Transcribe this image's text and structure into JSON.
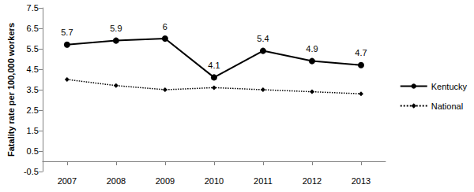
{
  "chart_data": {
    "type": "line",
    "y_label": "Fatality rate per 100,000 workers",
    "categories": [
      "2007",
      "2008",
      "2009",
      "2010",
      "2011",
      "2012",
      "2013"
    ],
    "series": [
      {
        "name": "Kentucky",
        "color": "#000000",
        "marker": "circle",
        "line_style": "solid",
        "data_labels": true,
        "values": [
          5.7,
          5.9,
          6.0,
          4.1,
          5.4,
          4.9,
          4.7
        ]
      },
      {
        "name": "National",
        "color": "#000000",
        "marker": "diamond",
        "line_style": "dotted",
        "data_labels": false,
        "values": [
          4.0,
          3.7,
          3.5,
          3.6,
          3.5,
          3.4,
          3.3
        ]
      }
    ],
    "ylim": [
      -0.5,
      7.5
    ],
    "yticks": [
      -0.5,
      0.5,
      1.5,
      2.5,
      3.5,
      4.5,
      5.5,
      6.5,
      7.5
    ],
    "grid": false,
    "legend": "right"
  }
}
